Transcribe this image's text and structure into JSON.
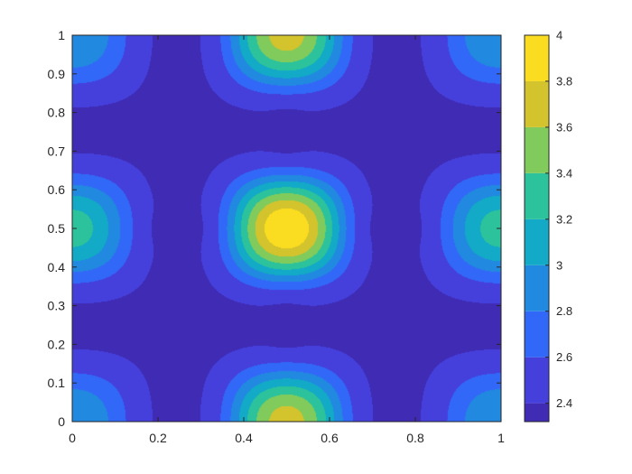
{
  "chart_data": {
    "type": "heatmap",
    "subtype": "filled-contour",
    "title": "",
    "xlabel": "",
    "ylabel": "",
    "xlim": [
      0,
      1
    ],
    "ylim": [
      0,
      1
    ],
    "x_ticks": [
      "0",
      "0.2",
      "0.4",
      "0.6",
      "0.8",
      "1"
    ],
    "y_ticks": [
      "0",
      "0.1",
      "0.2",
      "0.3",
      "0.4",
      "0.5",
      "0.6",
      "0.7",
      "0.8",
      "0.9",
      "1"
    ],
    "grid": false,
    "colormap": "parula",
    "colorbar": {
      "range": [
        2.32,
        4.0
      ],
      "ticks": [
        "2.4",
        "2.6",
        "2.8",
        "3",
        "3.2",
        "3.4",
        "3.6",
        "3.8",
        "4"
      ]
    },
    "contour_levels": [
      2.4,
      2.6,
      2.8,
      3.0,
      3.2,
      3.4,
      3.6,
      3.8
    ],
    "field": {
      "baseline": 2.37,
      "peaks": [
        {
          "x": 0.5,
          "y": 0.5,
          "value": 4.0
        },
        {
          "x": 0.0,
          "y": 0.5,
          "value": 3.3
        },
        {
          "x": 1.0,
          "y": 0.5,
          "value": 3.3
        },
        {
          "x": 0.5,
          "y": 0.0,
          "value": 3.7
        },
        {
          "x": 0.5,
          "y": 1.0,
          "value": 3.7
        },
        {
          "x": 0.0,
          "y": 0.0,
          "value": 3.0
        },
        {
          "x": 1.0,
          "y": 0.0,
          "value": 3.0
        },
        {
          "x": 0.0,
          "y": 1.0,
          "value": 3.0
        },
        {
          "x": 1.0,
          "y": 1.0,
          "value": 3.0
        }
      ],
      "troughs": [
        {
          "x": 0.25,
          "y": 0.5,
          "value": 2.33
        },
        {
          "x": 0.75,
          "y": 0.5,
          "value": 2.33
        },
        {
          "x": 0.5,
          "y": 0.25,
          "value": 2.33
        },
        {
          "x": 0.5,
          "y": 0.75,
          "value": 2.33
        }
      ]
    }
  }
}
